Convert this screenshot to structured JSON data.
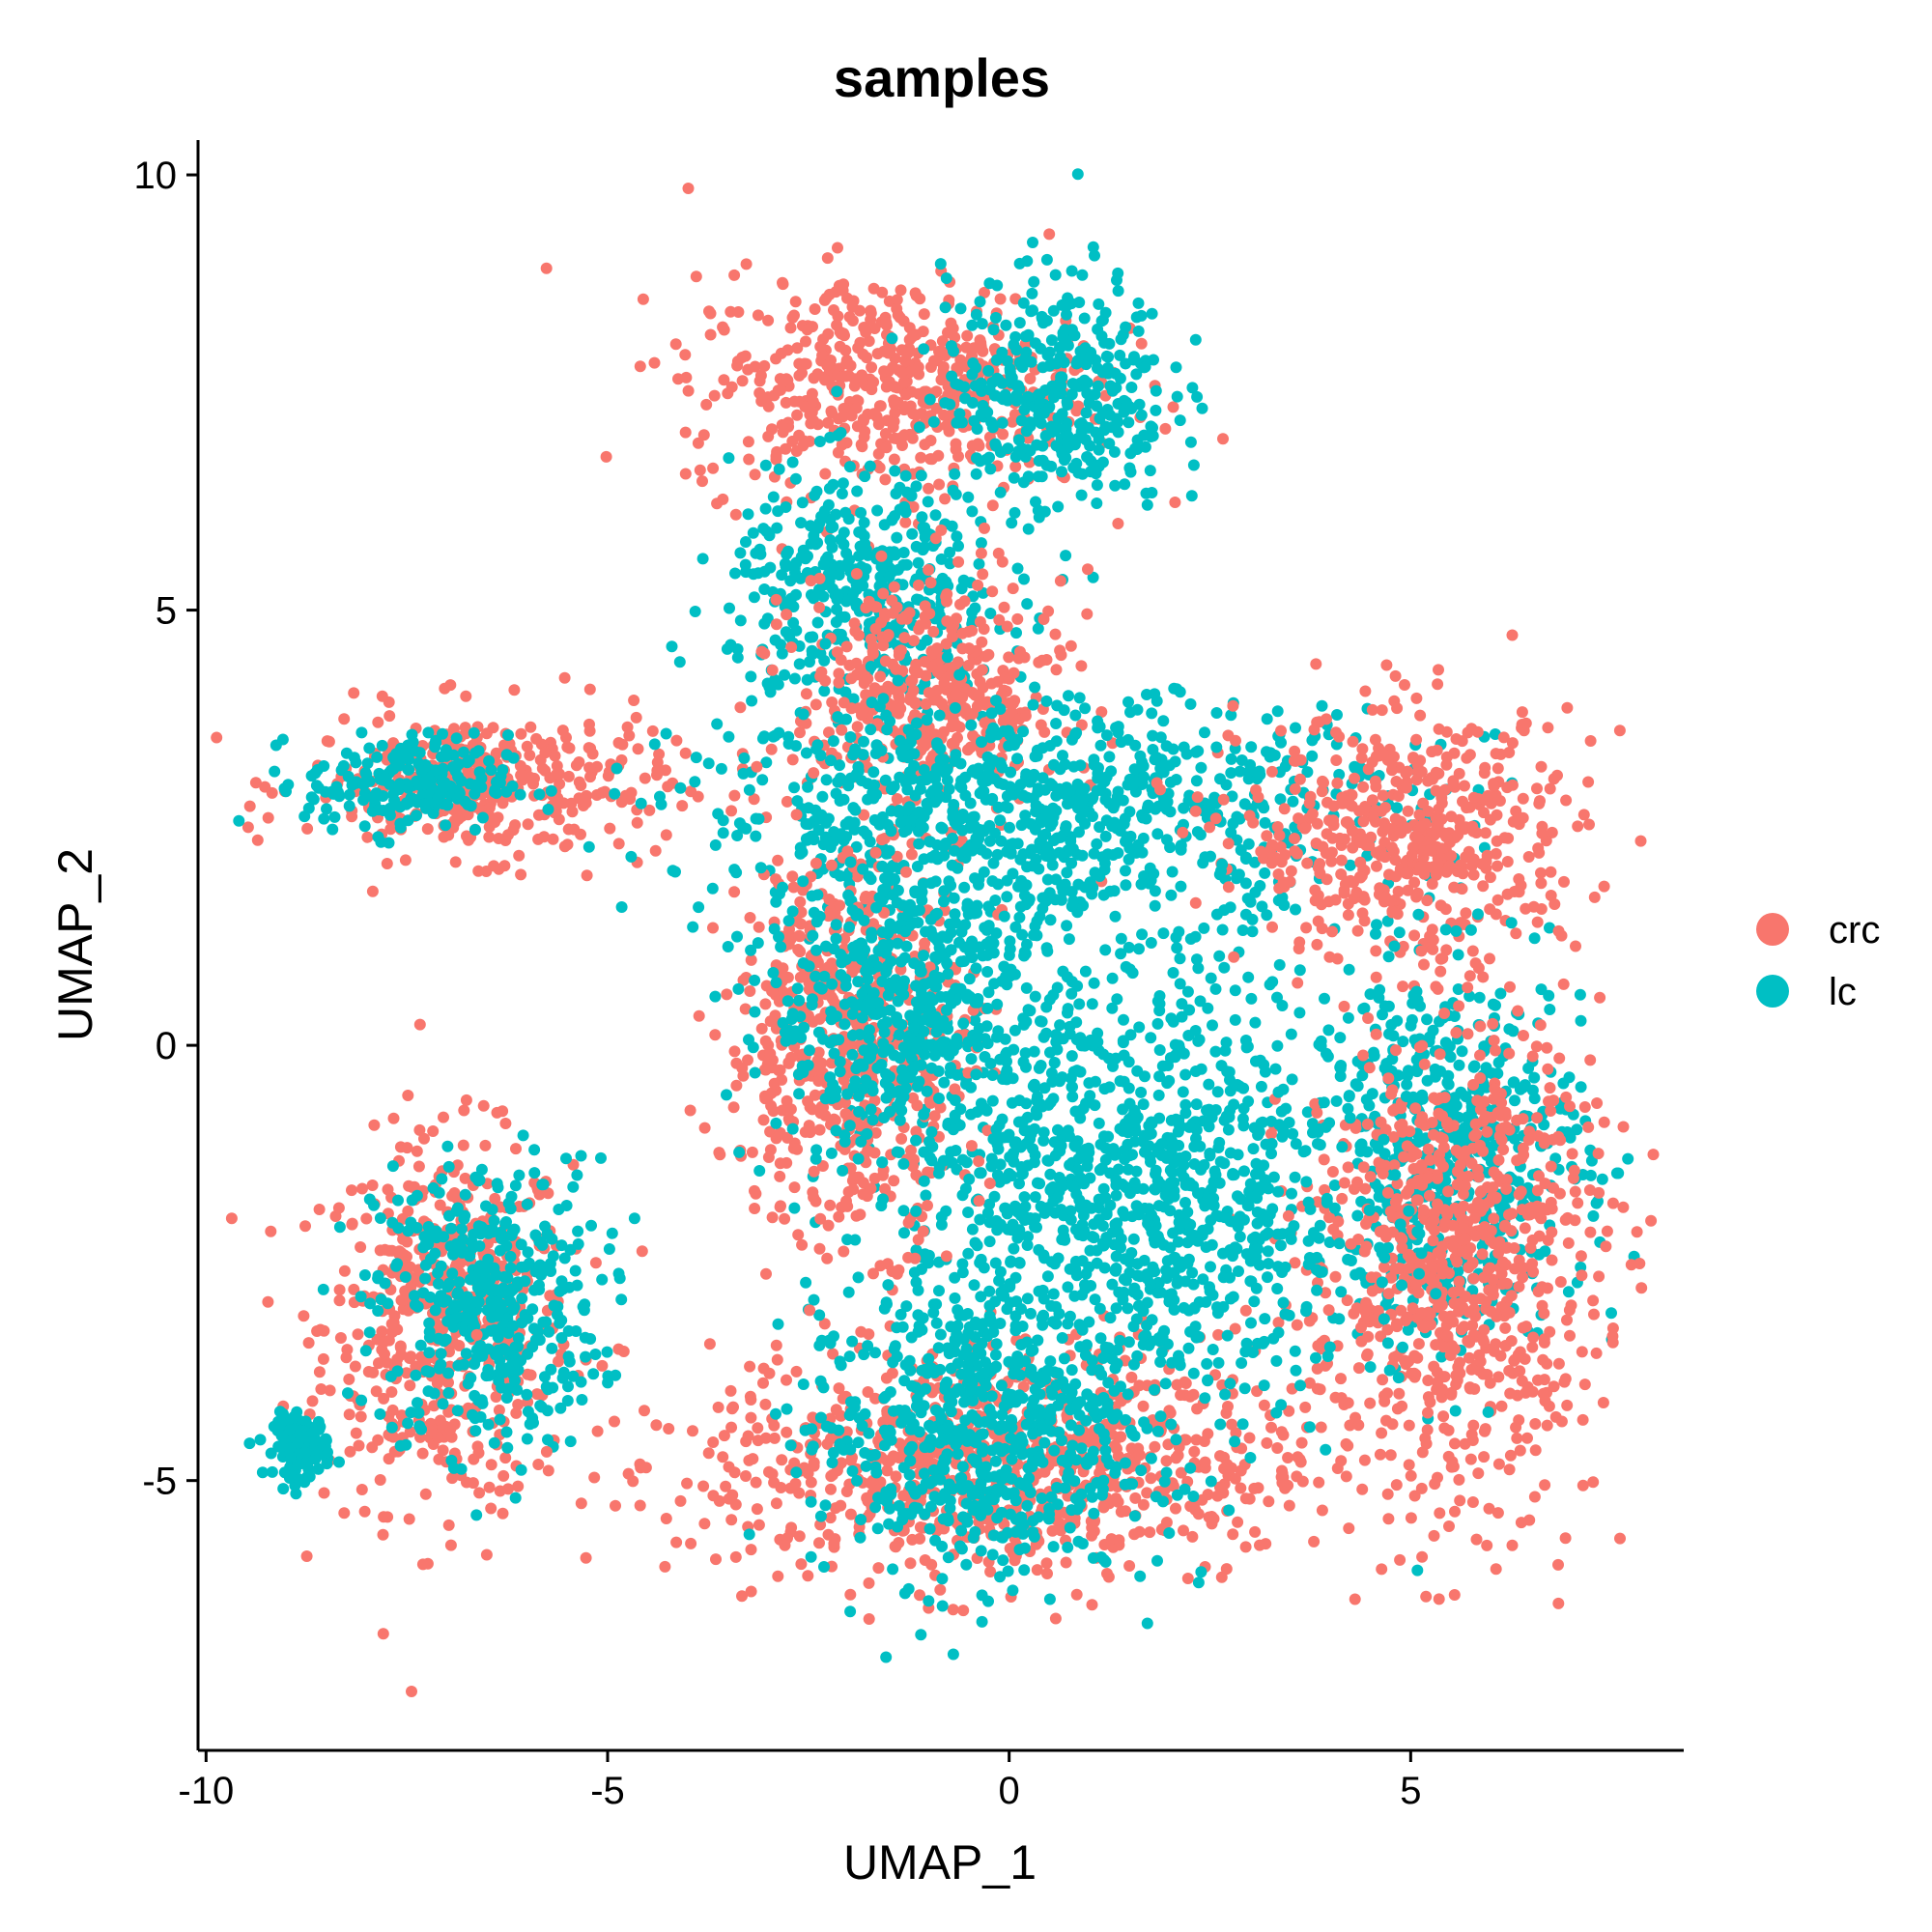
{
  "chart_data": {
    "type": "scatter",
    "title": "samples",
    "xlabel": "UMAP_1",
    "ylabel": "UMAP_2",
    "xlim": [
      -10.1,
      8.4
    ],
    "ylim": [
      -8.1,
      10.4
    ],
    "xticks": [
      -10,
      -5,
      0,
      5
    ],
    "xtick_labels": [
      "-10",
      "-5",
      "0",
      "5"
    ],
    "yticks": [
      -5,
      0,
      5,
      10
    ],
    "ytick_labels": [
      "-5",
      "0",
      "5",
      "10"
    ],
    "grid": false,
    "legend_position": "right",
    "series": [
      {
        "name": "crc",
        "color": "#F8766D"
      },
      {
        "name": "lc",
        "color": "#00BFC4"
      }
    ],
    "clusters": [
      {
        "series": "crc",
        "center": [
          -7.0,
          -3.2
        ],
        "spread": [
          1.1,
          1.5
        ]
      },
      {
        "series": "lc",
        "center": [
          -6.5,
          -3.0
        ],
        "spread": [
          1.0,
          1.2
        ]
      },
      {
        "series": "lc",
        "center": [
          -8.8,
          -4.6
        ],
        "spread": [
          0.25,
          0.25
        ]
      },
      {
        "series": "crc",
        "center": [
          -6.5,
          3.0
        ],
        "spread": [
          1.6,
          0.6
        ]
      },
      {
        "series": "lc",
        "center": [
          -7.5,
          3.0
        ],
        "spread": [
          0.9,
          0.4
        ]
      },
      {
        "series": "crc",
        "center": [
          -1.5,
          7.6
        ],
        "spread": [
          1.8,
          0.9
        ]
      },
      {
        "series": "lc",
        "center": [
          0.6,
          7.5
        ],
        "spread": [
          1.0,
          1.0
        ]
      },
      {
        "series": "lc",
        "center": [
          -1.8,
          5.2
        ],
        "spread": [
          1.2,
          1.0
        ]
      },
      {
        "series": "crc",
        "center": [
          -1.0,
          4.0
        ],
        "spread": [
          1.2,
          1.0
        ]
      },
      {
        "series": "lc",
        "center": [
          0.5,
          2.7
        ],
        "spread": [
          3.2,
          0.9
        ]
      },
      {
        "series": "crc",
        "center": [
          5.0,
          2.4
        ],
        "spread": [
          1.5,
          1.0
        ]
      },
      {
        "series": "lc",
        "center": [
          5.5,
          -1.2
        ],
        "spread": [
          1.2,
          1.5
        ]
      },
      {
        "series": "crc",
        "center": [
          5.5,
          -2.5
        ],
        "spread": [
          1.3,
          2.0
        ]
      },
      {
        "series": "crc",
        "center": [
          0.0,
          -4.8
        ],
        "spread": [
          2.8,
          1.0
        ]
      },
      {
        "series": "lc",
        "center": [
          -0.5,
          -4.5
        ],
        "spread": [
          1.4,
          1.2
        ]
      },
      {
        "series": "lc",
        "center": [
          1.5,
          -1.8
        ],
        "spread": [
          2.0,
          2.0
        ]
      },
      {
        "series": "crc",
        "center": [
          -2.0,
          0.0
        ],
        "spread": [
          1.1,
          1.6
        ]
      },
      {
        "series": "lc",
        "center": [
          -1.2,
          0.5
        ],
        "spread": [
          1.3,
          1.4
        ]
      }
    ]
  }
}
